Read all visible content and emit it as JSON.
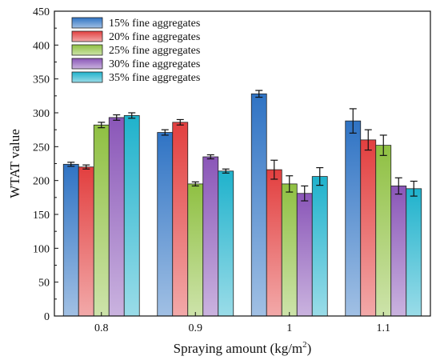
{
  "chart_data": {
    "type": "bar",
    "title": "",
    "xlabel": "Spraying amount (kg/m²)",
    "ylabel": "WTAT value",
    "ylim": [
      0,
      450
    ],
    "yticks": [
      0,
      50,
      100,
      150,
      200,
      250,
      300,
      350,
      400,
      450
    ],
    "categories": [
      "0.8",
      "0.9",
      "1",
      "1.1"
    ],
    "legend_position": "top-left",
    "grid": false,
    "series": [
      {
        "name": "15% fine aggregates",
        "color": "#2f73c4",
        "values": [
          224,
          271,
          328,
          288
        ],
        "errors": [
          3,
          4,
          5,
          18
        ]
      },
      {
        "name": "20% fine aggregates",
        "color": "#e23f3f",
        "values": [
          220,
          286,
          216,
          260
        ],
        "errors": [
          3,
          4,
          14,
          15
        ]
      },
      {
        "name": "25% fine aggregates",
        "color": "#8fc042",
        "values": [
          282,
          195,
          195,
          252
        ],
        "errors": [
          4,
          3,
          12,
          15
        ]
      },
      {
        "name": "30% fine aggregates",
        "color": "#8a56b8",
        "values": [
          293,
          235,
          181,
          192
        ],
        "errors": [
          4,
          3,
          11,
          12
        ]
      },
      {
        "name": "35% fine aggregates",
        "color": "#1fb2cc",
        "values": [
          296,
          214,
          206,
          188
        ],
        "errors": [
          4,
          3,
          13,
          11
        ]
      }
    ]
  }
}
